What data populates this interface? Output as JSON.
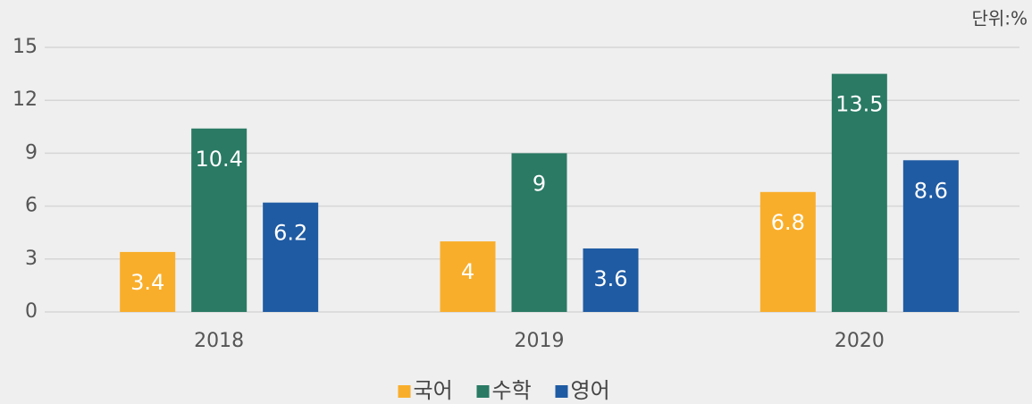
{
  "chart_data": {
    "type": "bar",
    "unit_label": "단위:%",
    "categories": [
      "2018",
      "2019",
      "2020"
    ],
    "series": [
      {
        "name": "국어",
        "color": "#f9ae2b",
        "values": [
          3.4,
          4,
          6.8
        ]
      },
      {
        "name": "수학",
        "color": "#2a7a64",
        "values": [
          10.4,
          9,
          13.5
        ]
      },
      {
        "name": "영어",
        "color": "#1f5ba3",
        "values": [
          6.2,
          3.6,
          8.6
        ]
      }
    ],
    "ylim": [
      0,
      15
    ],
    "yticks": [
      0,
      3,
      6,
      9,
      12,
      15
    ],
    "grid": true,
    "legend": "bottom"
  }
}
